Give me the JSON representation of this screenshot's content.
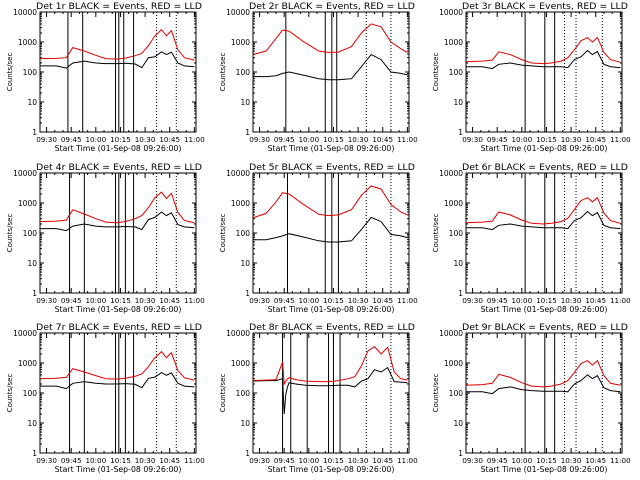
{
  "chart_data": {
    "type": "line",
    "grid": false,
    "layout": "3x3 grid of panels",
    "xlabel": "Start Time (01-Sep-08 09:26:00)",
    "ylabel": "Counts/sec",
    "ylog": true,
    "ylim": [
      1,
      10000
    ],
    "ytick_labels": [
      "1",
      "10",
      "100",
      "1000",
      "10000"
    ],
    "x_minutes_range": [
      0,
      95
    ],
    "xtick_labels": [
      "09:30",
      "09:45",
      "10:00",
      "10:15",
      "10:30",
      "10:45",
      "11:00"
    ],
    "xtick_minutes": [
      4,
      19,
      34,
      49,
      64,
      79,
      94
    ],
    "colors": {
      "events": "#000000",
      "lld": "#e00000"
    },
    "panels": [
      {
        "title": "Det 1r BLACK = Events, RED = LLD",
        "solid_lines_min": [
          17,
          26,
          46,
          48,
          51,
          57
        ],
        "dotted_lines_min": [
          71,
          83
        ],
        "series": [
          {
            "name": "Events",
            "x": [
              0,
              10,
              16,
              20,
              27,
              34,
              40,
              47,
              52,
              58,
              62,
              66,
              70,
              74,
              77,
              80,
              84,
              88,
              94
            ],
            "y": [
              160,
              160,
              135,
              200,
              230,
              200,
              190,
              190,
              195,
              185,
              140,
              300,
              320,
              470,
              380,
              460,
              200,
              160,
              150
            ]
          },
          {
            "name": "LLD",
            "x": [
              0,
              10,
              16,
              20,
              27,
              34,
              40,
              47,
              52,
              58,
              62,
              66,
              70,
              74,
              77,
              80,
              84,
              88,
              94
            ],
            "y": [
              280,
              285,
              300,
              650,
              500,
              360,
              280,
              270,
              290,
              350,
              420,
              750,
              1600,
              2600,
              1600,
              2400,
              550,
              300,
              250
            ]
          }
        ]
      },
      {
        "title": "Det 2r BLACK = Events, RED = LLD",
        "solid_lines_min": [
          20,
          44,
          48,
          51
        ],
        "dotted_lines_min": [
          69,
          84
        ],
        "series": [
          {
            "name": "Events",
            "x": [
              0,
              8,
              14,
              18,
              22,
              30,
              40,
              46,
              52,
              60,
              66,
              72,
              78,
              84,
              90,
              94
            ],
            "y": [
              70,
              70,
              75,
              90,
              100,
              80,
              60,
              55,
              55,
              60,
              150,
              380,
              260,
              100,
              90,
              80
            ]
          },
          {
            "name": "LLD",
            "x": [
              0,
              8,
              14,
              18,
              22,
              30,
              40,
              46,
              52,
              60,
              66,
              72,
              78,
              84,
              90,
              94
            ],
            "y": [
              380,
              500,
              1300,
              2500,
              2300,
              1100,
              500,
              450,
              460,
              700,
              2000,
              4000,
              3200,
              1000,
              600,
              450
            ]
          }
        ]
      },
      {
        "title": "Det 3r BLACK = Events, RED = LLD",
        "solid_lines_min": [
          36,
          48,
          54
        ],
        "dotted_lines_min": [
          60,
          67,
          83
        ],
        "series": [
          {
            "name": "Events",
            "x": [
              0,
              10,
              16,
              20,
              27,
              34,
              40,
              47,
              52,
              58,
              62,
              66,
              70,
              74,
              77,
              80,
              84,
              88,
              94
            ],
            "y": [
              150,
              150,
              130,
              180,
              200,
              170,
              160,
              150,
              150,
              150,
              140,
              260,
              320,
              520,
              380,
              480,
              180,
              150,
              140
            ]
          },
          {
            "name": "LLD",
            "x": [
              0,
              10,
              16,
              20,
              27,
              34,
              40,
              47,
              52,
              58,
              62,
              66,
              70,
              74,
              77,
              80,
              84,
              88,
              94
            ],
            "y": [
              220,
              230,
              250,
              470,
              380,
              260,
              200,
              190,
              200,
              230,
              300,
              550,
              1100,
              1400,
              1000,
              1400,
              450,
              260,
              210
            ]
          }
        ]
      },
      {
        "title": "Det 4r BLACK = Events, RED = LLD",
        "solid_lines_min": [
          18,
          27,
          46,
          48,
          52,
          57
        ],
        "dotted_lines_min": [
          71,
          83
        ],
        "series": [
          {
            "name": "Events",
            "x": [
              0,
              10,
              16,
              20,
              27,
              34,
              40,
              47,
              52,
              58,
              62,
              66,
              70,
              74,
              77,
              80,
              84,
              88,
              94
            ],
            "y": [
              140,
              140,
              120,
              170,
              200,
              170,
              160,
              160,
              165,
              160,
              130,
              280,
              330,
              500,
              380,
              470,
              190,
              160,
              150
            ]
          },
          {
            "name": "LLD",
            "x": [
              0,
              10,
              16,
              20,
              27,
              34,
              40,
              47,
              52,
              58,
              62,
              66,
              70,
              74,
              77,
              80,
              84,
              88,
              94
            ],
            "y": [
              240,
              250,
              270,
              600,
              430,
              300,
              230,
              220,
              240,
              300,
              380,
              700,
              1500,
              2300,
              1400,
              2100,
              480,
              260,
              220
            ]
          }
        ]
      },
      {
        "title": "Det 5r BLACK = Events, RED = LLD",
        "solid_lines_min": [
          21,
          44,
          48,
          52
        ],
        "dotted_lines_min": [
          69,
          84
        ],
        "series": [
          {
            "name": "Events",
            "x": [
              0,
              8,
              14,
              18,
              22,
              30,
              40,
              46,
              52,
              60,
              66,
              72,
              78,
              84,
              90,
              94
            ],
            "y": [
              60,
              60,
              70,
              80,
              95,
              75,
              55,
              50,
              50,
              55,
              130,
              330,
              240,
              90,
              80,
              70
            ]
          },
          {
            "name": "LLD",
            "x": [
              0,
              8,
              14,
              18,
              22,
              30,
              40,
              46,
              52,
              60,
              66,
              72,
              78,
              84,
              90,
              94
            ],
            "y": [
              320,
              450,
              1100,
              2200,
              2000,
              950,
              420,
              380,
              400,
              600,
              1800,
              3700,
              2900,
              900,
              500,
              400
            ]
          }
        ]
      },
      {
        "title": "Det 6r BLACK = Events, RED = LLD",
        "solid_lines_min": [
          36,
          48,
          54
        ],
        "dotted_lines_min": [
          60,
          67,
          83
        ],
        "series": [
          {
            "name": "Events",
            "x": [
              0,
              10,
              16,
              20,
              27,
              34,
              40,
              47,
              52,
              58,
              62,
              66,
              70,
              74,
              77,
              80,
              84,
              88,
              94
            ],
            "y": [
              150,
              150,
              130,
              180,
              200,
              170,
              160,
              150,
              150,
              150,
              140,
              260,
              320,
              520,
              380,
              480,
              180,
              150,
              140
            ]
          },
          {
            "name": "LLD",
            "x": [
              0,
              10,
              16,
              20,
              27,
              34,
              40,
              47,
              52,
              58,
              62,
              66,
              70,
              74,
              77,
              80,
              84,
              88,
              94
            ],
            "y": [
              220,
              230,
              250,
              500,
              400,
              270,
              210,
              200,
              210,
              240,
              310,
              600,
              1200,
              1500,
              1100,
              1500,
              460,
              260,
              210
            ]
          }
        ]
      },
      {
        "title": "Det 7r BLACK = Events, RED = LLD",
        "solid_lines_min": [
          18,
          27,
          46,
          48,
          52,
          57
        ],
        "dotted_lines_min": [
          71,
          83
        ],
        "series": [
          {
            "name": "Events",
            "x": [
              0,
              10,
              16,
              20,
              27,
              34,
              40,
              47,
              52,
              58,
              62,
              66,
              70,
              74,
              77,
              80,
              84,
              88,
              94
            ],
            "y": [
              170,
              170,
              140,
              210,
              240,
              210,
              200,
              200,
              205,
              195,
              150,
              310,
              340,
              480,
              390,
              470,
              210,
              170,
              160
            ]
          },
          {
            "name": "LLD",
            "x": [
              0,
              10,
              16,
              20,
              27,
              34,
              40,
              47,
              52,
              58,
              62,
              66,
              70,
              74,
              77,
              80,
              84,
              88,
              94
            ],
            "y": [
              300,
              310,
              330,
              650,
              500,
              380,
              300,
              290,
              310,
              360,
              430,
              750,
              1500,
              2400,
              1500,
              2200,
              560,
              320,
              270
            ]
          }
        ]
      },
      {
        "title": "Det 8r BLACK = Events, RED = LLD",
        "solid_lines_min": [
          18,
          23,
          33,
          46,
          49,
          53
        ],
        "dotted_lines_min": [
          69,
          84
        ],
        "series": [
          {
            "name": "Events",
            "x": [
              0,
              8,
              14,
              18,
              19,
              20,
              21,
              22,
              26,
              32,
              40,
              46,
              52,
              58,
              62,
              66,
              70,
              74,
              78,
              82,
              86,
              90,
              94
            ],
            "y": [
              250,
              260,
              260,
              300,
              20,
              90,
              160,
              220,
              200,
              180,
              175,
              175,
              180,
              180,
              160,
              250,
              300,
              600,
              500,
              700,
              240,
              230,
              220
            ]
          },
          {
            "name": "LLD",
            "x": [
              0,
              8,
              14,
              18,
              19,
              20,
              21,
              22,
              26,
              32,
              40,
              46,
              52,
              58,
              62,
              66,
              70,
              74,
              78,
              82,
              86,
              90,
              94
            ],
            "y": [
              260,
              270,
              280,
              1100,
              200,
              250,
              300,
              320,
              280,
              250,
              240,
              240,
              260,
              300,
              350,
              800,
              2500,
              3500,
              2000,
              3300,
              500,
              300,
              270
            ]
          }
        ]
      },
      {
        "title": "Det 9r BLACK = Events, RED = LLD",
        "solid_lines_min": [
          36,
          48,
          54
        ],
        "dotted_lines_min": [
          60,
          67,
          83
        ],
        "series": [
          {
            "name": "Events",
            "x": [
              0,
              10,
              16,
              20,
              27,
              34,
              40,
              47,
              52,
              58,
              62,
              66,
              70,
              74,
              77,
              80,
              84,
              88,
              94
            ],
            "y": [
              110,
              110,
              95,
              140,
              160,
              130,
              120,
              115,
              115,
              115,
              110,
              200,
              260,
              400,
              300,
              380,
              150,
              120,
              110
            ]
          },
          {
            "name": "LLD",
            "x": [
              0,
              10,
              16,
              20,
              27,
              34,
              40,
              47,
              52,
              58,
              62,
              66,
              70,
              74,
              77,
              80,
              84,
              88,
              94
            ],
            "y": [
              180,
              190,
              210,
              420,
              330,
              220,
              170,
              160,
              170,
              200,
              260,
              480,
              950,
              1200,
              850,
              1200,
              380,
              210,
              180
            ]
          }
        ]
      }
    ]
  }
}
